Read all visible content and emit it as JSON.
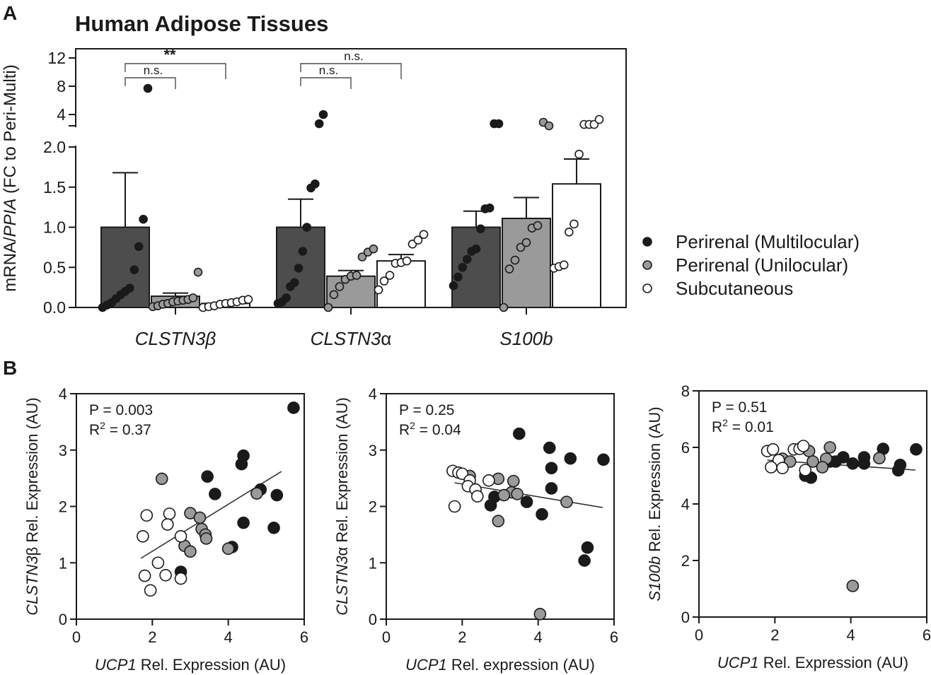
{
  "panel_labels": {
    "a": "A",
    "b": "B"
  },
  "chart_data": [
    {
      "type": "bar",
      "title": "Human Adipose Tissues",
      "ylabel_parts": {
        "pre": "mRNA/",
        "italic": "PPIA",
        "post": " (FC to Peri-Multi)"
      },
      "categories": [
        {
          "italic": "CLSTN3β",
          "plain": ""
        },
        {
          "italic": "CLSTN3",
          "plain": "α"
        },
        {
          "italic": "S100b",
          "plain": ""
        }
      ],
      "y_lower": {
        "range": [
          0,
          2.0
        ],
        "ticks": [
          "0.0",
          "0.5",
          "1.0",
          "1.5",
          "2.0"
        ],
        "tick_values": [
          0,
          0.5,
          1.0,
          1.5,
          2.0
        ]
      },
      "y_upper": {
        "range": [
          2.4,
          13.2
        ],
        "ticks": [
          "4",
          "8",
          "12"
        ],
        "tick_values": [
          4,
          8,
          12
        ]
      },
      "colors": {
        "multi": "#4d4d4d",
        "uni": "#9a9a9a",
        "sub": "#ffffff",
        "dot_multi": "#1a1a1a",
        "dot_uni": "#9a9a9a",
        "dot_sub": "#ffffff"
      },
      "legend": [
        {
          "label": "Perirenal (Multilocular)",
          "fill": "#1a1a1a"
        },
        {
          "label": "Perirenal (Unilocular)",
          "fill": "#9a9a9a"
        },
        {
          "label": "Subcutaneous",
          "fill": "#ffffff"
        }
      ],
      "series": [
        {
          "name": "Perirenal (Multilocular)",
          "means": [
            1.0,
            1.0,
            1.0
          ],
          "sem_upper": [
            1.68,
            1.35,
            1.2
          ],
          "points": [
            [
              0.0,
              0.03,
              0.06,
              0.11,
              0.16,
              0.2,
              0.24,
              0.47,
              0.76,
              1.1,
              7.7
            ],
            [
              0.05,
              0.07,
              0.12,
              0.26,
              0.31,
              0.49,
              0.7,
              1.0,
              1.49,
              1.54,
              2.7,
              4.0
            ],
            [
              0.27,
              0.38,
              0.5,
              0.6,
              0.7,
              0.73,
              0.98,
              1.23,
              1.24,
              2.7,
              2.7
            ]
          ]
        },
        {
          "name": "Perirenal (Unilocular)",
          "means": [
            0.14,
            0.39,
            1.11
          ],
          "sem_upper": [
            0.18,
            0.46,
            1.37
          ],
          "points": [
            [
              0.01,
              0.02,
              0.04,
              0.05,
              0.07,
              0.08,
              0.09,
              0.1,
              0.12,
              0.44
            ],
            [
              0.0,
              0.16,
              0.26,
              0.35,
              0.39,
              0.4,
              0.63,
              0.69,
              0.73
            ],
            [
              0.0,
              0.48,
              0.59,
              0.75,
              0.81,
              0.99,
              1.02,
              2.9,
              2.4
            ]
          ]
        },
        {
          "name": "Subcutaneous",
          "means": [
            0.05,
            0.58,
            1.54
          ],
          "sem_upper": [
            0.06,
            0.66,
            1.85
          ],
          "points": [
            [
              0.0,
              0.01,
              0.02,
              0.04,
              0.05,
              0.06,
              0.07,
              0.09,
              0.1
            ],
            [
              0.22,
              0.33,
              0.4,
              0.55,
              0.56,
              0.58,
              0.79,
              0.84,
              0.91
            ],
            [
              0.49,
              0.51,
              0.53,
              0.94,
              1.04,
              1.91,
              2.6,
              2.6,
              2.6,
              3.3
            ]
          ]
        }
      ],
      "significance": [
        {
          "label": "n.s.",
          "group": 0,
          "from": 0,
          "to": 1,
          "level": 1
        },
        {
          "label": "**",
          "group": 0,
          "from": 0,
          "to": 2,
          "level": 2
        },
        {
          "label": "n.s.",
          "group": 1,
          "from": 0,
          "to": 1,
          "level": 1
        },
        {
          "label": "n.s.",
          "group": 1,
          "from": 0,
          "to": 2,
          "level": 2
        }
      ]
    },
    {
      "type": "scatter",
      "annotation": {
        "p": "P = 0.003",
        "r2_pre": "R",
        "r2_sup": "2",
        "r2_post": " = 0.37"
      },
      "xlabel": {
        "italic": "UCP1",
        "plain": " Rel. Expression (AU)"
      },
      "ylabel": {
        "italic": "CLSTN3",
        "plain": "β Rel. Expression (AU)"
      },
      "xlim": [
        0,
        6
      ],
      "ylim": [
        0,
        4
      ],
      "xticks": [
        0,
        2,
        4,
        6
      ],
      "yticks": [
        0,
        1,
        2,
        3,
        4
      ],
      "fit": [
        [
          1.7,
          1.08
        ],
        [
          5.4,
          2.62
        ]
      ],
      "points": [
        {
          "x": 5.72,
          "y": 3.75,
          "g": "multi"
        },
        {
          "x": 4.4,
          "y": 2.9,
          "g": "multi"
        },
        {
          "x": 4.35,
          "y": 2.75,
          "g": "multi"
        },
        {
          "x": 3.45,
          "y": 2.53,
          "g": "multi"
        },
        {
          "x": 3.65,
          "y": 2.22,
          "g": "multi"
        },
        {
          "x": 4.85,
          "y": 2.3,
          "g": "multi"
        },
        {
          "x": 5.28,
          "y": 2.2,
          "g": "multi"
        },
        {
          "x": 4.4,
          "y": 1.71,
          "g": "multi"
        },
        {
          "x": 5.2,
          "y": 1.62,
          "g": "multi"
        },
        {
          "x": 4.1,
          "y": 1.28,
          "g": "multi"
        },
        {
          "x": 2.75,
          "y": 0.84,
          "g": "multi"
        },
        {
          "x": 2.25,
          "y": 2.49,
          "g": "uni"
        },
        {
          "x": 3.0,
          "y": 1.88,
          "g": "uni"
        },
        {
          "x": 3.25,
          "y": 1.8,
          "g": "uni"
        },
        {
          "x": 3.3,
          "y": 1.6,
          "g": "uni"
        },
        {
          "x": 3.4,
          "y": 1.5,
          "g": "uni"
        },
        {
          "x": 3.42,
          "y": 1.43,
          "g": "uni"
        },
        {
          "x": 2.85,
          "y": 1.3,
          "g": "uni"
        },
        {
          "x": 3.0,
          "y": 1.2,
          "g": "uni"
        },
        {
          "x": 4.0,
          "y": 1.25,
          "g": "uni"
        },
        {
          "x": 4.75,
          "y": 2.23,
          "g": "uni"
        },
        {
          "x": 1.75,
          "y": 1.47,
          "g": "sub"
        },
        {
          "x": 1.85,
          "y": 1.84,
          "g": "sub"
        },
        {
          "x": 2.45,
          "y": 1.87,
          "g": "sub"
        },
        {
          "x": 2.4,
          "y": 1.68,
          "g": "sub"
        },
        {
          "x": 2.75,
          "y": 1.47,
          "g": "sub"
        },
        {
          "x": 2.15,
          "y": 1.0,
          "g": "sub"
        },
        {
          "x": 1.8,
          "y": 0.77,
          "g": "sub"
        },
        {
          "x": 2.35,
          "y": 0.78,
          "g": "sub"
        },
        {
          "x": 2.75,
          "y": 0.72,
          "g": "sub"
        },
        {
          "x": 1.95,
          "y": 0.51,
          "g": "sub"
        }
      ]
    },
    {
      "type": "scatter",
      "annotation": {
        "p": "P = 0.25",
        "r2_pre": "R",
        "r2_sup": "2",
        "r2_post": " = 0.04"
      },
      "xlabel": {
        "italic": "UCP1",
        "plain": " Rel. expression (AU)"
      },
      "ylabel": {
        "italic": "CLSTN3",
        "plain": "α Rel. Expression (AU)"
      },
      "xlim": [
        0,
        6
      ],
      "ylim": [
        0,
        4
      ],
      "xticks": [
        0,
        2,
        4,
        6
      ],
      "yticks": [
        0,
        1,
        2,
        3,
        4
      ],
      "fit": [
        [
          1.8,
          2.42
        ],
        [
          5.7,
          1.98
        ]
      ],
      "points": [
        {
          "x": 3.5,
          "y": 3.29,
          "g": "multi"
        },
        {
          "x": 4.3,
          "y": 3.04,
          "g": "multi"
        },
        {
          "x": 4.85,
          "y": 2.85,
          "g": "multi"
        },
        {
          "x": 5.72,
          "y": 2.83,
          "g": "multi"
        },
        {
          "x": 4.35,
          "y": 2.68,
          "g": "multi"
        },
        {
          "x": 4.35,
          "y": 2.32,
          "g": "multi"
        },
        {
          "x": 2.85,
          "y": 2.17,
          "g": "multi"
        },
        {
          "x": 3.7,
          "y": 2.08,
          "g": "multi"
        },
        {
          "x": 2.75,
          "y": 2.02,
          "g": "multi"
        },
        {
          "x": 4.1,
          "y": 1.86,
          "g": "multi"
        },
        {
          "x": 5.3,
          "y": 1.27,
          "g": "multi"
        },
        {
          "x": 5.22,
          "y": 1.04,
          "g": "multi"
        },
        {
          "x": 2.2,
          "y": 2.54,
          "g": "uni"
        },
        {
          "x": 2.95,
          "y": 2.49,
          "g": "uni"
        },
        {
          "x": 3.35,
          "y": 2.45,
          "g": "uni"
        },
        {
          "x": 3.3,
          "y": 2.25,
          "g": "uni"
        },
        {
          "x": 3.45,
          "y": 2.22,
          "g": "uni"
        },
        {
          "x": 3.1,
          "y": 2.2,
          "g": "uni"
        },
        {
          "x": 4.75,
          "y": 2.08,
          "g": "uni"
        },
        {
          "x": 2.95,
          "y": 1.74,
          "g": "uni"
        },
        {
          "x": 4.05,
          "y": 0.09,
          "g": "uni"
        },
        {
          "x": 1.75,
          "y": 2.63,
          "g": "sub"
        },
        {
          "x": 1.9,
          "y": 2.6,
          "g": "sub"
        },
        {
          "x": 2.0,
          "y": 2.58,
          "g": "sub"
        },
        {
          "x": 2.2,
          "y": 2.46,
          "g": "sub"
        },
        {
          "x": 2.7,
          "y": 2.46,
          "g": "sub"
        },
        {
          "x": 2.15,
          "y": 2.36,
          "g": "sub"
        },
        {
          "x": 2.35,
          "y": 2.3,
          "g": "sub"
        },
        {
          "x": 2.4,
          "y": 2.18,
          "g": "sub"
        },
        {
          "x": 1.8,
          "y": 2.0,
          "g": "sub"
        }
      ]
    },
    {
      "type": "scatter",
      "annotation": {
        "p": "P = 0.51",
        "r2_pre": "R",
        "r2_sup": "2",
        "r2_post": " = 0.01"
      },
      "xlabel": {
        "italic": "UCP1",
        "plain": " Rel. Expression (AU)"
      },
      "ylabel": {
        "italic": "S100b",
        "plain": " Rel. Expression (AU)"
      },
      "xlim": [
        0,
        6
      ],
      "ylim": [
        0,
        8
      ],
      "xticks": [
        0,
        2,
        4,
        6
      ],
      "yticks": [
        0,
        2,
        4,
        6,
        8
      ],
      "fit": [
        [
          1.8,
          5.55
        ],
        [
          5.7,
          5.2
        ]
      ],
      "points": [
        {
          "x": 5.72,
          "y": 5.93,
          "g": "multi"
        },
        {
          "x": 4.85,
          "y": 5.95,
          "g": "multi"
        },
        {
          "x": 4.35,
          "y": 5.65,
          "g": "multi"
        },
        {
          "x": 3.8,
          "y": 5.65,
          "g": "multi"
        },
        {
          "x": 3.6,
          "y": 5.5,
          "g": "multi"
        },
        {
          "x": 4.05,
          "y": 5.43,
          "g": "multi"
        },
        {
          "x": 4.35,
          "y": 5.43,
          "g": "multi"
        },
        {
          "x": 5.3,
          "y": 5.38,
          "g": "multi"
        },
        {
          "x": 5.25,
          "y": 5.19,
          "g": "multi"
        },
        {
          "x": 3.45,
          "y": 5.5,
          "g": "multi"
        },
        {
          "x": 2.8,
          "y": 5.0,
          "g": "multi"
        },
        {
          "x": 2.95,
          "y": 4.93,
          "g": "multi"
        },
        {
          "x": 2.2,
          "y": 5.6,
          "g": "uni"
        },
        {
          "x": 2.9,
          "y": 5.87,
          "g": "uni"
        },
        {
          "x": 3.35,
          "y": 5.6,
          "g": "uni"
        },
        {
          "x": 3.45,
          "y": 6.0,
          "g": "uni"
        },
        {
          "x": 3.0,
          "y": 5.5,
          "g": "uni"
        },
        {
          "x": 3.25,
          "y": 5.3,
          "g": "uni"
        },
        {
          "x": 2.4,
          "y": 5.5,
          "g": "uni"
        },
        {
          "x": 4.75,
          "y": 5.62,
          "g": "uni"
        },
        {
          "x": 4.05,
          "y": 1.1,
          "g": "uni"
        },
        {
          "x": 1.8,
          "y": 5.87,
          "g": "sub"
        },
        {
          "x": 1.95,
          "y": 5.93,
          "g": "sub"
        },
        {
          "x": 2.5,
          "y": 5.93,
          "g": "sub"
        },
        {
          "x": 2.65,
          "y": 5.95,
          "g": "sub"
        },
        {
          "x": 2.75,
          "y": 6.05,
          "g": "sub"
        },
        {
          "x": 2.1,
          "y": 5.55,
          "g": "sub"
        },
        {
          "x": 1.9,
          "y": 5.3,
          "g": "sub"
        },
        {
          "x": 2.2,
          "y": 5.27,
          "g": "sub"
        },
        {
          "x": 2.8,
          "y": 5.2,
          "g": "sub"
        }
      ]
    }
  ]
}
